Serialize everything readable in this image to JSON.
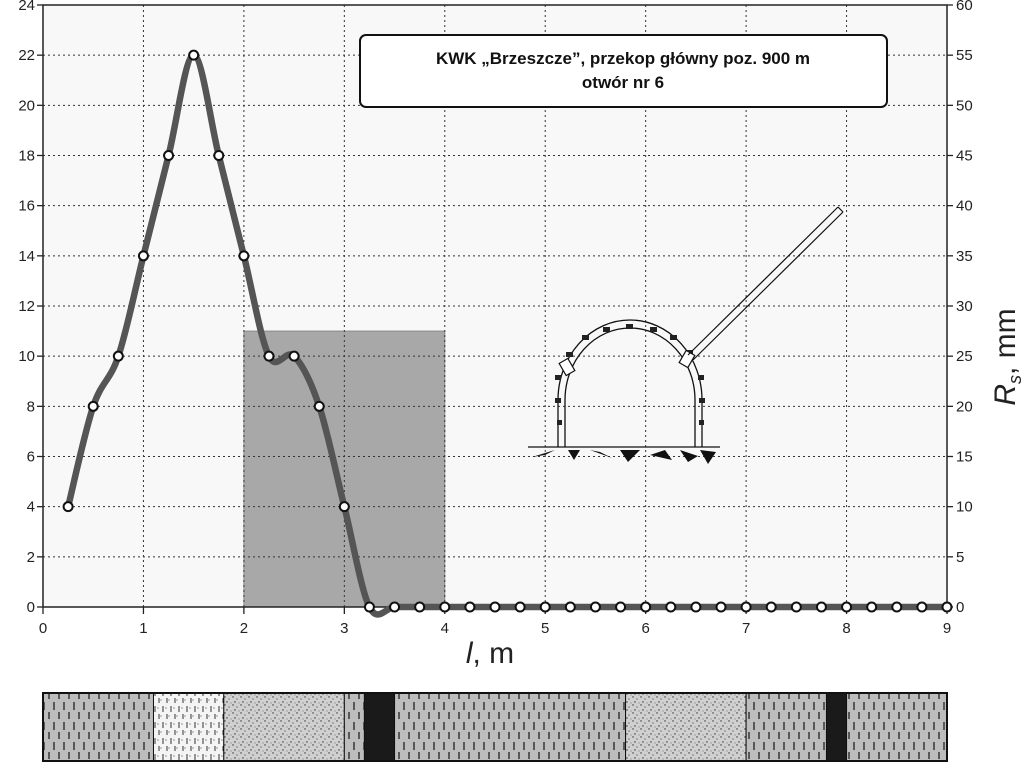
{
  "chart_data": {
    "type": "line",
    "title": [
      "KWK „Brzeszcze”, przekop główny poz. 900 m",
      "otwór nr 6"
    ],
    "xlabel": {
      "italic": "l",
      "rest": ", m"
    },
    "ylabel_right": {
      "italic": "R",
      "sub": "s",
      "rest": ", mm"
    },
    "xlim": [
      0,
      9
    ],
    "ylim_left": [
      0,
      24
    ],
    "ylim_right": [
      0,
      60
    ],
    "x_ticks": [
      0,
      1,
      2,
      3,
      4,
      5,
      6,
      7,
      8,
      9
    ],
    "y_left_ticks": [
      0,
      2,
      4,
      6,
      8,
      10,
      12,
      14,
      16,
      18,
      20,
      22,
      24
    ],
    "y_right_ticks": [
      0,
      5,
      10,
      15,
      20,
      25,
      30,
      35,
      40,
      45,
      50,
      55,
      60
    ],
    "grid": true,
    "highlight_region": {
      "x": [
        2,
        4
      ],
      "y_left": [
        0,
        11
      ]
    },
    "series": [
      {
        "x": [
          0.25,
          0.5,
          0.75,
          1.0,
          1.25,
          1.5,
          1.75,
          2.0,
          2.25,
          2.5,
          2.75,
          3.0,
          3.25,
          3.5,
          3.75,
          4.0,
          4.25,
          4.5,
          4.75,
          5.0,
          5.25,
          5.5,
          5.75,
          6.0,
          6.25,
          6.5,
          6.75,
          7.0,
          7.25,
          7.5,
          7.75,
          8.0,
          8.25,
          8.5,
          8.75,
          9.0
        ],
        "y_left": [
          4,
          8,
          10,
          14,
          18,
          22,
          18,
          14,
          10,
          10,
          8,
          4,
          0,
          0,
          0,
          0,
          0,
          0,
          0,
          0,
          0,
          0,
          0,
          0,
          0,
          0,
          0,
          0,
          0,
          0,
          0,
          0,
          0,
          0,
          0,
          0
        ],
        "line_color": "#555555",
        "marker_fill": "#ffffff"
      }
    ],
    "strata_strip": [
      {
        "from": 0.0,
        "to": 1.1,
        "pattern": "hatch"
      },
      {
        "from": 1.1,
        "to": 1.8,
        "pattern": "light-hatch"
      },
      {
        "from": 1.8,
        "to": 3.0,
        "pattern": "stipple"
      },
      {
        "from": 3.0,
        "to": 3.2,
        "pattern": "hatch"
      },
      {
        "from": 3.2,
        "to": 3.5,
        "pattern": "coal"
      },
      {
        "from": 3.5,
        "to": 5.8,
        "pattern": "hatch"
      },
      {
        "from": 5.8,
        "to": 7.0,
        "pattern": "stipple"
      },
      {
        "from": 7.0,
        "to": 7.8,
        "pattern": "hatch"
      },
      {
        "from": 7.8,
        "to": 8.0,
        "pattern": "coal"
      },
      {
        "from": 8.0,
        "to": 9.0,
        "pattern": "hatch"
      }
    ]
  }
}
